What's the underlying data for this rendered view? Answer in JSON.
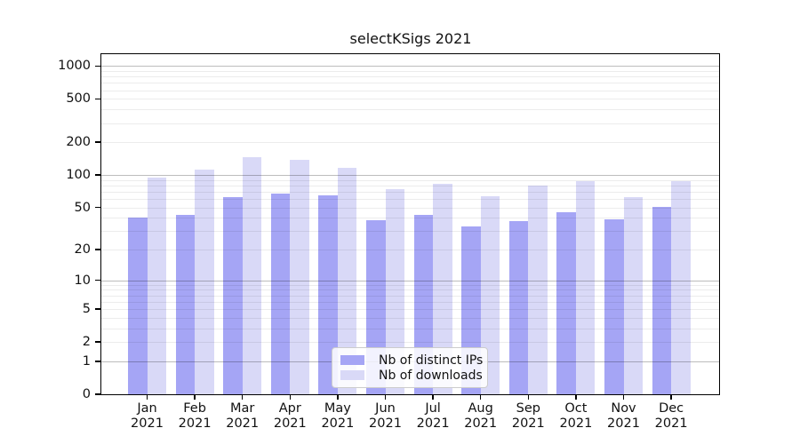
{
  "chart_data": {
    "type": "bar",
    "title": "selectKSigs 2021",
    "categories": [
      "Jan 2021",
      "Feb 2021",
      "Mar 2021",
      "Apr 2021",
      "May 2021",
      "Jun 2021",
      "Jul 2021",
      "Aug 2021",
      "Sep 2021",
      "Oct 2021",
      "Nov 2021",
      "Dec 2021"
    ],
    "series": [
      {
        "name": "Nb of distinct IPs",
        "color": "#a5a5f5",
        "values": [
          40,
          43,
          62,
          67,
          65,
          38,
          43,
          33,
          37,
          45,
          39,
          51
        ]
      },
      {
        "name": "Nb of downloads",
        "color": "#d9d9f7",
        "values": [
          95,
          112,
          145,
          137,
          116,
          74,
          83,
          64,
          80,
          88,
          62,
          88
        ]
      }
    ],
    "y_axis": {
      "scale": "log1p",
      "ticks": [
        0,
        1,
        2,
        5,
        10,
        20,
        50,
        100,
        200,
        500,
        1000
      ],
      "ylim": [
        0,
        1280
      ],
      "major_gridlines": [
        1,
        10,
        100,
        1000
      ],
      "minor_gridlines": [
        2,
        3,
        4,
        5,
        6,
        7,
        8,
        9,
        20,
        30,
        40,
        50,
        60,
        70,
        80,
        90,
        200,
        300,
        400,
        500,
        600,
        700,
        800,
        900
      ]
    },
    "legend": {
      "position": "inside-bottom-center"
    },
    "colors": {
      "frame": "#000000",
      "major_grid": "#c0c0c0",
      "minor_grid": "#ececec",
      "background": "#ffffff"
    }
  }
}
